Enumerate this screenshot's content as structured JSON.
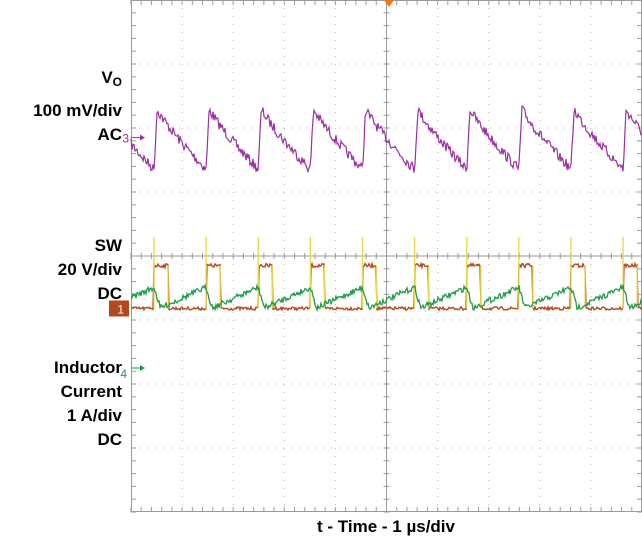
{
  "labels": {
    "vo_name": "V",
    "vo_sub": "O",
    "vo_scale": "100 mV/div",
    "vo_coupling": "AC",
    "sw_name": "SW",
    "sw_scale": "20 V/div",
    "sw_coupling": "DC",
    "il_name1": "Inductor",
    "il_name2": "Current",
    "il_scale": "1 A/div",
    "il_coupling": "DC",
    "xlabel": "t - Time - 1 µs/div"
  },
  "markers": {
    "ch3": "3",
    "ch1": "1",
    "ch4": "4"
  },
  "colors": {
    "vo": "#9b2f9e",
    "sw": "#b5481c",
    "sw_edge": "#e8d84a",
    "il": "#1f9a4a",
    "grid": "#b8b8b8",
    "frame": "#9a9a9a"
  },
  "chart_data": {
    "type": "line",
    "x": {
      "divisions": 10,
      "units_per_div": "1 µs"
    },
    "y": {
      "divisions": 8
    },
    "grid": true,
    "switching_period_div": 1.02,
    "edges_div": [
      0.45,
      1.47,
      2.49,
      3.51,
      4.53,
      5.55,
      6.57,
      7.59,
      8.61,
      9.63
    ],
    "series": [
      {
        "name": "VO",
        "scale": "100 mV/div",
        "coupling": "AC",
        "marker_div": 2.15,
        "waveform": "sawtooth",
        "peak_to_peak_div": 0.9
      },
      {
        "name": "SW",
        "scale": "20 V/div",
        "coupling": "DC",
        "marker_div": 4.82,
        "waveform": "pulse",
        "high_div": 4.15,
        "duty": 0.27
      },
      {
        "name": "Inductor Current",
        "scale": "1 A/div",
        "coupling": "DC",
        "marker_div": 5.75,
        "waveform": "triangle",
        "peak_to_peak_div": 0.32
      }
    ]
  }
}
